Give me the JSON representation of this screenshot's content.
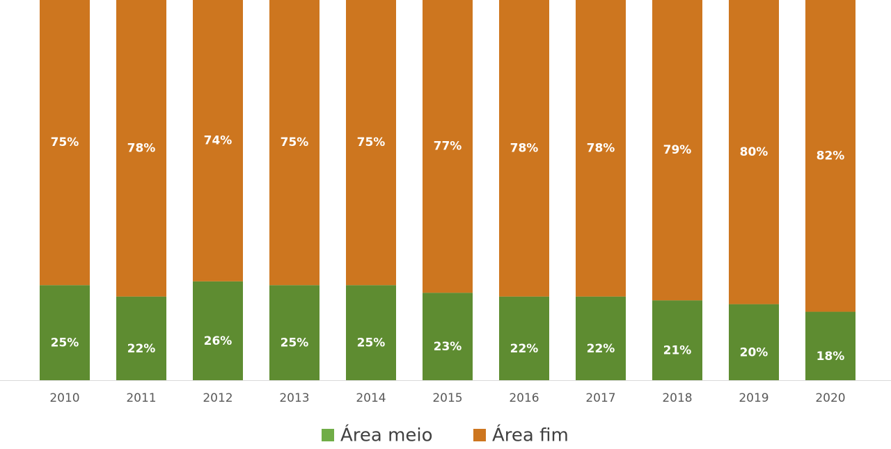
{
  "chart_data": {
    "type": "stacked_bar",
    "categories": [
      "2010",
      "2011",
      "2012",
      "2013",
      "2014",
      "2015",
      "2016",
      "2017",
      "2018",
      "2019",
      "2020"
    ],
    "ylim": [
      0,
      100
    ],
    "series": [
      {
        "name": "Área meio",
        "color": "#5e8c31",
        "legend_color": "#70ad47",
        "values": [
          25,
          22,
          26,
          25,
          25,
          23,
          22,
          22,
          21,
          20,
          18
        ],
        "value_labels": [
          "25%",
          "22%",
          "26%",
          "25%",
          "25%",
          "23%",
          "22%",
          "22%",
          "21%",
          "20%",
          "18%"
        ]
      },
      {
        "name": "Área fim",
        "color": "#cd761f",
        "legend_color": "#cd761f",
        "values": [
          75,
          78,
          74,
          75,
          75,
          77,
          78,
          78,
          79,
          80,
          82
        ],
        "value_labels": [
          "75%",
          "78%",
          "74%",
          "75%",
          "75%",
          "77%",
          "78%",
          "78%",
          "79%",
          "80%",
          "82%"
        ]
      }
    ]
  }
}
